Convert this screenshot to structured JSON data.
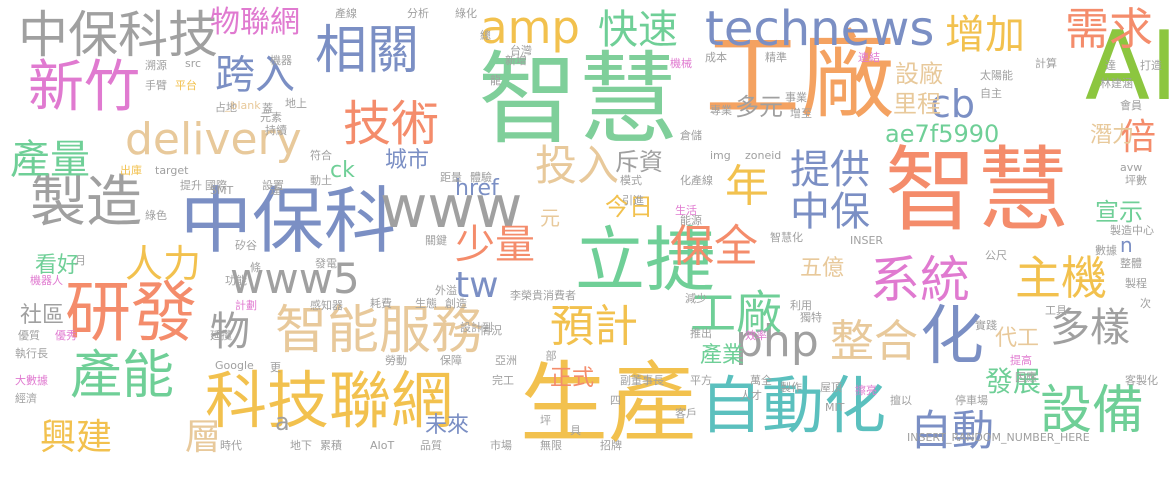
{
  "words": [
    {
      "text": "智慧",
      "color": "#7fcf9a"
    },
    {
      "text": "工廠",
      "color": "#f4a261"
    },
    {
      "text": "智慧",
      "color": "#f48c6b"
    },
    {
      "text": "生產",
      "color": "#f2c14e"
    },
    {
      "text": "立捷",
      "color": "#6fcf97"
    },
    {
      "text": "AI",
      "color": "#8cc63f"
    },
    {
      "text": "中保科",
      "color": "#7b8fc4"
    },
    {
      "text": "自動化",
      "color": "#5bc0be"
    },
    {
      "text": "科技聯網",
      "color": "#f2c14e"
    },
    {
      "text": "中保科技",
      "color": "#a0a0a0"
    },
    {
      "text": "新竹",
      "color": "#e07ad0"
    },
    {
      "text": "相關",
      "color": "#7b8fc4"
    },
    {
      "text": "amp",
      "color": "#f2c14e"
    },
    {
      "text": "technews",
      "color": "#7b8fc4"
    },
    {
      "text": "快速",
      "color": "#6fcf97"
    },
    {
      "text": "物聯網",
      "color": "#e07ad0"
    },
    {
      "text": "需求",
      "color": "#f48c6b"
    },
    {
      "text": "增加",
      "color": "#f2c14e"
    },
    {
      "text": "研發",
      "color": "#f48c6b"
    },
    {
      "text": "製造",
      "color": "#a0a0a0"
    },
    {
      "text": "技術",
      "color": "#f48c6b"
    },
    {
      "text": "delivery",
      "color": "#e8c99b"
    },
    {
      "text": "產量",
      "color": "#6fcf97"
    },
    {
      "text": "跨入",
      "color": "#7b8fc4"
    },
    {
      "text": "www",
      "color": "#a0a0a0"
    },
    {
      "text": "cb",
      "color": "#7b8fc4"
    },
    {
      "text": "智能服務",
      "color": "#e8c99b"
    },
    {
      "text": "系統",
      "color": "#e07ad0"
    },
    {
      "text": "產能",
      "color": "#6fcf97"
    },
    {
      "text": "設備",
      "color": "#6fcf97"
    },
    {
      "text": "化",
      "color": "#7b8fc4"
    },
    {
      "text": "保全",
      "color": "#f48c6b"
    },
    {
      "text": "預計",
      "color": "#f2c14e"
    },
    {
      "text": "少量",
      "color": "#f48c6b"
    },
    {
      "text": "年",
      "color": "#f2c14e"
    },
    {
      "text": "提供",
      "color": "#7b8fc4"
    },
    {
      "text": "投入",
      "color": "#e8c99b"
    },
    {
      "text": "主機",
      "color": "#f2c14e"
    },
    {
      "text": "整合",
      "color": "#e8c99b"
    },
    {
      "text": "php",
      "color": "#a0a0a0"
    },
    {
      "text": "www5",
      "color": "#a0a0a0"
    },
    {
      "text": "中保",
      "color": "#7b8fc4"
    },
    {
      "text": "人力",
      "color": "#f2c14e"
    },
    {
      "text": "興建",
      "color": "#f2c14e"
    },
    {
      "text": "層",
      "color": "#e8c99b"
    },
    {
      "text": "工廠",
      "color": "#6fcf97"
    },
    {
      "text": "多樣",
      "color": "#a0a0a0"
    },
    {
      "text": "自動",
      "color": "#7b8fc4"
    },
    {
      "text": "tw",
      "color": "#7b8fc4"
    },
    {
      "text": "物",
      "color": "#a0a0a0"
    },
    {
      "text": "ae7f5990",
      "color": "#6fcf97"
    },
    {
      "text": "倍",
      "color": "#f48c6b"
    },
    {
      "text": "設廠",
      "color": "#e8c99b"
    },
    {
      "text": "里程",
      "color": "#e8c99b"
    },
    {
      "text": "多元",
      "color": "#a0a0a0"
    },
    {
      "text": "潛力",
      "color": "#e8c99b"
    },
    {
      "text": "宣示",
      "color": "#6fcf97"
    },
    {
      "text": "發展",
      "color": "#6fcf97"
    },
    {
      "text": "href",
      "color": "#7b8fc4"
    },
    {
      "text": "ck",
      "color": "#6fcf97"
    },
    {
      "text": "城市",
      "color": "#7b8fc4"
    },
    {
      "text": "斥資",
      "color": "#a0a0a0"
    },
    {
      "text": "今日",
      "color": "#f2c14e"
    },
    {
      "text": "元",
      "color": "#e8c99b"
    },
    {
      "text": "五億",
      "color": "#e8c99b"
    },
    {
      "text": "代工",
      "color": "#e8c99b"
    },
    {
      "text": "產業",
      "color": "#6fcf97"
    },
    {
      "text": "正式",
      "color": "#f48c6b"
    },
    {
      "text": "未來",
      "color": "#7b8fc4"
    },
    {
      "text": "看好",
      "color": "#6fcf97"
    },
    {
      "text": "社區",
      "color": "#a0a0a0"
    },
    {
      "text": "a",
      "color": "#a0a0a0"
    },
    {
      "text": "n",
      "color": "#7b8fc4"
    },
    {
      "text": "產線",
      "color": "#a0a0a0"
    },
    {
      "text": "分析",
      "color": "#a0a0a0"
    },
    {
      "text": "綠化",
      "color": "#a0a0a0"
    },
    {
      "text": "總",
      "color": "#a0a0a0"
    },
    {
      "text": "台灣",
      "color": "#a0a0a0"
    },
    {
      "text": "新增",
      "color": "#a0a0a0"
    },
    {
      "text": "龍",
      "color": "#a0a0a0"
    },
    {
      "text": "機器",
      "color": "#a0a0a0"
    },
    {
      "text": "溯源",
      "color": "#a0a0a0"
    },
    {
      "text": "平台",
      "color": "#f2c14e"
    },
    {
      "text": "手臂",
      "color": "#a0a0a0"
    },
    {
      "text": "占地",
      "color": "#a0a0a0"
    },
    {
      "text": "_blank",
      "color": "#e8c99b"
    },
    {
      "text": "蓋",
      "color": "#a0a0a0"
    },
    {
      "text": "元素",
      "color": "#a0a0a0"
    },
    {
      "text": "地上",
      "color": "#a0a0a0"
    },
    {
      "text": "持續",
      "color": "#a0a0a0"
    },
    {
      "text": "機械",
      "color": "#e07ad0"
    },
    {
      "text": "成本",
      "color": "#a0a0a0"
    },
    {
      "text": "精準",
      "color": "#a0a0a0"
    },
    {
      "text": "連結",
      "color": "#e07ad0"
    },
    {
      "text": "計算",
      "color": "#a0a0a0"
    },
    {
      "text": "達",
      "color": "#a0a0a0"
    },
    {
      "text": "打造",
      "color": "#a0a0a0"
    },
    {
      "text": "太陽能",
      "color": "#a0a0a0"
    },
    {
      "text": "林建涵",
      "color": "#a0a0a0"
    },
    {
      "text": "自主",
      "color": "#a0a0a0"
    },
    {
      "text": "會員",
      "color": "#a0a0a0"
    },
    {
      "text": "事業",
      "color": "#a0a0a0"
    },
    {
      "text": "增至",
      "color": "#a0a0a0"
    },
    {
      "text": "專業",
      "color": "#a0a0a0"
    },
    {
      "text": "倉儲",
      "color": "#a0a0a0"
    },
    {
      "text": "img",
      "color": "#a0a0a0"
    },
    {
      "text": "zoneid",
      "color": "#a0a0a0"
    },
    {
      "text": "模式",
      "color": "#a0a0a0"
    },
    {
      "text": "化產線",
      "color": "#a0a0a0"
    },
    {
      "text": "引進",
      "color": "#a0a0a0"
    },
    {
      "text": "生活",
      "color": "#e07ad0"
    },
    {
      "text": "能源",
      "color": "#a0a0a0"
    },
    {
      "text": "智慧化",
      "color": "#a0a0a0"
    },
    {
      "text": "INSER",
      "color": "#a0a0a0"
    },
    {
      "text": "avw",
      "color": "#a0a0a0"
    },
    {
      "text": "坪數",
      "color": "#a0a0a0"
    },
    {
      "text": "製造中心",
      "color": "#a0a0a0"
    },
    {
      "text": "數據",
      "color": "#a0a0a0"
    },
    {
      "text": "整體",
      "color": "#a0a0a0"
    },
    {
      "text": "製程",
      "color": "#a0a0a0"
    },
    {
      "text": "出庫",
      "color": "#f2c14e"
    },
    {
      "text": "target",
      "color": "#a0a0a0"
    },
    {
      "text": "SMT",
      "color": "#a0a0a0"
    },
    {
      "text": "符合",
      "color": "#a0a0a0"
    },
    {
      "text": "動土",
      "color": "#a0a0a0"
    },
    {
      "text": "距量",
      "color": "#a0a0a0"
    },
    {
      "text": "體驗",
      "color": "#a0a0a0"
    },
    {
      "text": "提升",
      "color": "#a0a0a0"
    },
    {
      "text": "國際",
      "color": "#a0a0a0"
    },
    {
      "text": "設置",
      "color": "#a0a0a0"
    },
    {
      "text": "達",
      "color": "#a0a0a0"
    },
    {
      "text": "綠色",
      "color": "#a0a0a0"
    },
    {
      "text": "矽谷",
      "color": "#a0a0a0"
    },
    {
      "text": "關鍵",
      "color": "#a0a0a0"
    },
    {
      "text": "月",
      "color": "#a0a0a0"
    },
    {
      "text": "發電",
      "color": "#a0a0a0"
    },
    {
      "text": "機器人",
      "color": "#e07ad0"
    },
    {
      "text": "條",
      "color": "#a0a0a0"
    },
    {
      "text": "功能",
      "color": "#a0a0a0"
    },
    {
      "text": "外溢",
      "color": "#a0a0a0"
    },
    {
      "text": "李榮貴消費者",
      "color": "#a0a0a0"
    },
    {
      "text": "公尺",
      "color": "#a0a0a0"
    },
    {
      "text": "計劃",
      "color": "#e07ad0"
    },
    {
      "text": "感知器",
      "color": "#a0a0a0"
    },
    {
      "text": "耗費",
      "color": "#a0a0a0"
    },
    {
      "text": "生態",
      "color": "#a0a0a0"
    },
    {
      "text": "創造",
      "color": "#a0a0a0"
    },
    {
      "text": "減少",
      "color": "#a0a0a0"
    },
    {
      "text": "利用",
      "color": "#a0a0a0"
    },
    {
      "text": "次",
      "color": "#a0a0a0"
    },
    {
      "text": "優質",
      "color": "#a0a0a0"
    },
    {
      "text": "優秀",
      "color": "#e07ad0"
    },
    {
      "text": "設計到",
      "color": "#a0a0a0"
    },
    {
      "text": "獨特",
      "color": "#a0a0a0"
    },
    {
      "text": "工具",
      "color": "#a0a0a0"
    },
    {
      "text": "執行長",
      "color": "#a0a0a0"
    },
    {
      "text": "情況",
      "color": "#a0a0a0"
    },
    {
      "text": "推出",
      "color": "#a0a0a0"
    },
    {
      "text": "效率",
      "color": "#e07ad0"
    },
    {
      "text": "實踐",
      "color": "#a0a0a0"
    },
    {
      "text": "延攬",
      "color": "#a0a0a0"
    },
    {
      "text": "Google",
      "color": "#a0a0a0"
    },
    {
      "text": "部",
      "color": "#a0a0a0"
    },
    {
      "text": "勞動",
      "color": "#a0a0a0"
    },
    {
      "text": "保障",
      "color": "#a0a0a0"
    },
    {
      "text": "亞洲",
      "color": "#a0a0a0"
    },
    {
      "text": "提高",
      "color": "#e07ad0"
    },
    {
      "text": "因應",
      "color": "#a0a0a0"
    },
    {
      "text": "大數據",
      "color": "#e07ad0"
    },
    {
      "text": "更",
      "color": "#a0a0a0"
    },
    {
      "text": "完工",
      "color": "#a0a0a0"
    },
    {
      "text": "副董事長",
      "color": "#a0a0a0"
    },
    {
      "text": "平方",
      "color": "#a0a0a0"
    },
    {
      "text": "萬全",
      "color": "#a0a0a0"
    },
    {
      "text": "人才",
      "color": "#a0a0a0"
    },
    {
      "text": "製作",
      "color": "#a0a0a0"
    },
    {
      "text": "屋頂",
      "color": "#a0a0a0"
    },
    {
      "text": "客製化",
      "color": "#a0a0a0"
    },
    {
      "text": "經濟",
      "color": "#a0a0a0"
    },
    {
      "text": "四",
      "color": "#a0a0a0"
    },
    {
      "text": "擦亮",
      "color": "#e07ad0"
    },
    {
      "text": "擅以",
      "color": "#a0a0a0"
    },
    {
      "text": "停車場",
      "color": "#a0a0a0"
    },
    {
      "text": "MIT",
      "color": "#a0a0a0"
    },
    {
      "text": "坪",
      "color": "#a0a0a0"
    },
    {
      "text": "客戶",
      "color": "#a0a0a0"
    },
    {
      "text": "時代",
      "color": "#a0a0a0"
    },
    {
      "text": "地下",
      "color": "#a0a0a0"
    },
    {
      "text": "累積",
      "color": "#a0a0a0"
    },
    {
      "text": "AIoT",
      "color": "#a0a0a0"
    },
    {
      "text": "品質",
      "color": "#a0a0a0"
    },
    {
      "text": "市場",
      "color": "#a0a0a0"
    },
    {
      "text": "無限",
      "color": "#a0a0a0"
    },
    {
      "text": "具",
      "color": "#a0a0a0"
    },
    {
      "text": "招牌",
      "color": "#a0a0a0"
    },
    {
      "text": "INSERT_RANDOM_NUMBER_HERE",
      "color": "#a0a0a0"
    },
    {
      "text": "src",
      "color": "#a0a0a0"
    }
  ]
}
